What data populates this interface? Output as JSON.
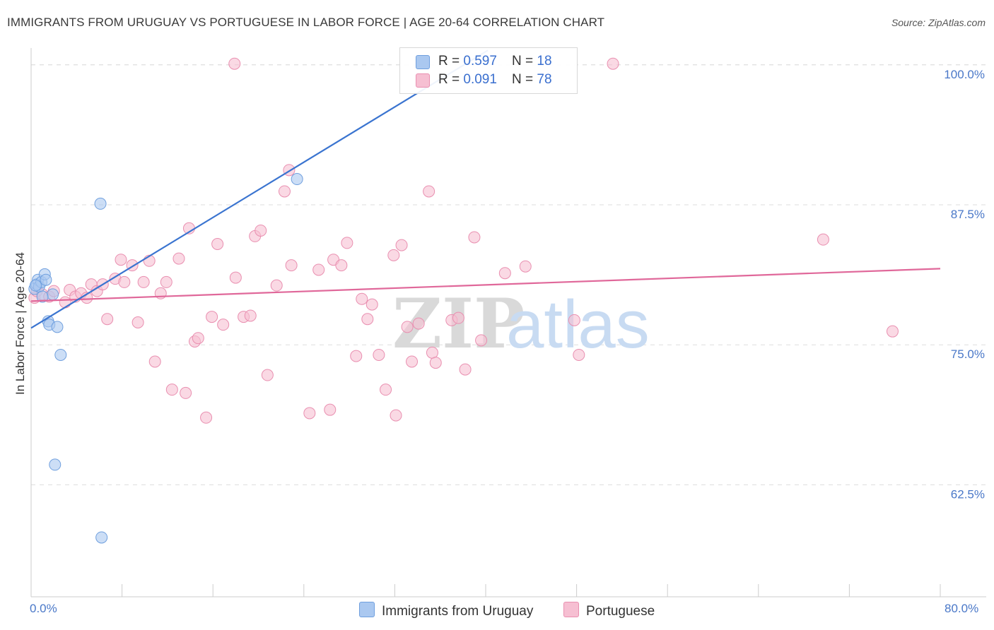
{
  "title": "IMMIGRANTS FROM URUGUAY VS PORTUGUESE IN LABOR FORCE | AGE 20-64 CORRELATION CHART",
  "source": "Source: ZipAtlas.com",
  "watermark": {
    "zip": "ZIP",
    "atlas": "atlas"
  },
  "colors": {
    "blue_fill": "#aac8f0",
    "blue_stroke": "#6f9fde",
    "blue_line": "#3a74d0",
    "pink_fill": "#f6bfd2",
    "pink_stroke": "#e98fb0",
    "pink_line": "#e0689a",
    "grid": "#dddddd",
    "axis_text": "#4a78c8"
  },
  "legend": {
    "rows": [
      {
        "r_label": "R = ",
        "r_value": "0.597",
        "n_label": "N = ",
        "n_value": "18"
      },
      {
        "r_label": "R = ",
        "r_value": "0.091",
        "n_label": "N = ",
        "n_value": "78"
      }
    ]
  },
  "bottom_legend": {
    "series_a": "Immigrants from Uruguay",
    "series_b": "Portuguese"
  },
  "x_axis": {
    "min_label": "0.0%",
    "max_label": "80.0%"
  },
  "chart_data": {
    "type": "scatter",
    "title": "IMMIGRANTS FROM URUGUAY VS PORTUGUESE IN LABOR FORCE | AGE 20-64 CORRELATION CHART",
    "xlabel": "",
    "ylabel": "In Labor Force | Age 20-64",
    "xlim": [
      0,
      80
    ],
    "ylim": [
      52.5,
      101.5
    ],
    "y_ticks": [
      62.5,
      75.0,
      87.5,
      100.0
    ],
    "y_tick_labels": [
      "62.5%",
      "75.0%",
      "87.5%",
      "100.0%"
    ],
    "series": [
      {
        "name": "Immigrants from Uruguay",
        "R": 0.597,
        "N": 18,
        "trend": {
          "x0": 0,
          "y0": 76.5,
          "x1": 40.2,
          "y1": 101.3
        },
        "points": [
          [
            0.3,
            80.0
          ],
          [
            0.5,
            80.4
          ],
          [
            0.6,
            80.8
          ],
          [
            0.7,
            80.2
          ],
          [
            0.9,
            80.6
          ],
          [
            1.2,
            81.3
          ],
          [
            1.3,
            80.8
          ],
          [
            1.5,
            77.1
          ],
          [
            1.6,
            76.8
          ],
          [
            1.9,
            79.5
          ],
          [
            2.3,
            76.6
          ],
          [
            2.6,
            74.1
          ],
          [
            2.1,
            64.3
          ],
          [
            6.1,
            87.6
          ],
          [
            6.2,
            57.8
          ],
          [
            23.4,
            89.8
          ],
          [
            0.4,
            80.3
          ],
          [
            1.0,
            79.3
          ]
        ]
      },
      {
        "name": "Portuguese",
        "R": 0.091,
        "N": 78,
        "trend": {
          "x0": 0,
          "y0": 78.9,
          "x1": 80,
          "y1": 81.8
        },
        "points": [
          [
            0.3,
            79.2
          ],
          [
            0.5,
            79.8
          ],
          [
            1.0,
            79.5
          ],
          [
            1.6,
            79.3
          ],
          [
            2.0,
            79.8
          ],
          [
            3.0,
            78.8
          ],
          [
            3.4,
            79.9
          ],
          [
            3.9,
            79.3
          ],
          [
            4.4,
            79.6
          ],
          [
            4.9,
            79.2
          ],
          [
            5.3,
            80.4
          ],
          [
            5.8,
            79.8
          ],
          [
            6.3,
            80.4
          ],
          [
            6.7,
            77.3
          ],
          [
            7.4,
            80.9
          ],
          [
            7.9,
            82.6
          ],
          [
            8.2,
            80.6
          ],
          [
            8.9,
            82.1
          ],
          [
            9.4,
            77.0
          ],
          [
            9.9,
            80.6
          ],
          [
            10.4,
            82.5
          ],
          [
            10.9,
            73.5
          ],
          [
            11.4,
            79.6
          ],
          [
            11.9,
            80.6
          ],
          [
            12.4,
            71.0
          ],
          [
            13.0,
            82.7
          ],
          [
            13.6,
            70.7
          ],
          [
            13.9,
            85.4
          ],
          [
            14.4,
            75.3
          ],
          [
            14.7,
            75.6
          ],
          [
            15.4,
            68.5
          ],
          [
            15.9,
            77.5
          ],
          [
            16.4,
            84.0
          ],
          [
            16.9,
            76.8
          ],
          [
            18.0,
            81.0
          ],
          [
            18.7,
            77.5
          ],
          [
            19.3,
            77.6
          ],
          [
            19.7,
            84.7
          ],
          [
            20.2,
            85.2
          ],
          [
            20.8,
            72.3
          ],
          [
            21.6,
            80.3
          ],
          [
            22.3,
            88.7
          ],
          [
            22.7,
            90.6
          ],
          [
            22.9,
            82.1
          ],
          [
            24.5,
            68.9
          ],
          [
            25.3,
            81.7
          ],
          [
            26.3,
            69.2
          ],
          [
            26.6,
            82.6
          ],
          [
            27.3,
            82.1
          ],
          [
            27.8,
            84.1
          ],
          [
            28.6,
            74.0
          ],
          [
            29.1,
            79.1
          ],
          [
            29.6,
            77.3
          ],
          [
            30.0,
            78.6
          ],
          [
            30.6,
            74.1
          ],
          [
            31.2,
            71.0
          ],
          [
            31.9,
            83.0
          ],
          [
            32.1,
            68.7
          ],
          [
            32.6,
            83.9
          ],
          [
            33.1,
            76.6
          ],
          [
            33.5,
            73.5
          ],
          [
            34.1,
            76.9
          ],
          [
            35.0,
            88.7
          ],
          [
            35.3,
            74.3
          ],
          [
            35.6,
            73.4
          ],
          [
            37.0,
            77.2
          ],
          [
            37.6,
            77.4
          ],
          [
            38.2,
            72.8
          ],
          [
            39.0,
            84.6
          ],
          [
            39.6,
            75.4
          ],
          [
            41.7,
            81.4
          ],
          [
            43.5,
            82.0
          ],
          [
            47.8,
            77.2
          ],
          [
            48.2,
            74.1
          ],
          [
            51.2,
            100.1
          ],
          [
            69.7,
            84.4
          ],
          [
            75.8,
            76.2
          ],
          [
            17.9,
            100.1
          ]
        ]
      }
    ]
  }
}
